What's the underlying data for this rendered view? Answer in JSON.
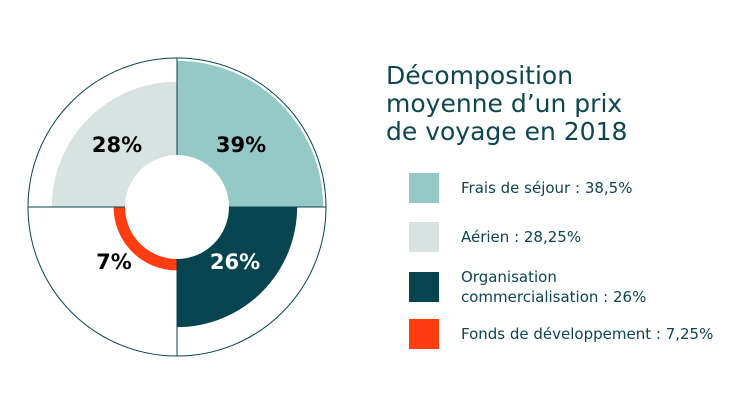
{
  "title_lines": [
    "Décomposition",
    "moyenne d’un prix",
    "de voyage en 2018"
  ],
  "chart_data": {
    "type": "pie",
    "title": "Décomposition moyenne d’un prix de voyage en 2018",
    "slices": [
      {
        "name": "Frais de séjour",
        "legend": "Frais de séjour : 38,5%",
        "legend_lines": [
          "Frais de séjour : 38,5%"
        ],
        "value": 38.5,
        "label": "39%",
        "color": "#94c9c6",
        "label_color": "#000000"
      },
      {
        "name": "Aérien",
        "legend": "Aérien : 28,25%",
        "legend_lines": [
          "Aérien : 28,25%"
        ],
        "value": 28.25,
        "label": "28%",
        "color": "#d8e2e1",
        "label_color": "#000000"
      },
      {
        "name": "Organisation commercialisation",
        "legend": "Organisation commercialisation : 26%",
        "legend_lines": [
          "Organisation",
          "commercialisation : 26%"
        ],
        "value": 26,
        "label": "26%",
        "color": "#06454f",
        "label_color": "#ffffff"
      },
      {
        "name": "Fonds de développement",
        "legend": "Fonds de développement : 7,25%",
        "legend_lines": [
          "Fonds de développement : 7,25%"
        ],
        "value": 7.25,
        "label": "7%",
        "color": "#ff3d10",
        "label_color": "#000000"
      }
    ],
    "outline_color": "#06454f",
    "legend_position": "right"
  }
}
